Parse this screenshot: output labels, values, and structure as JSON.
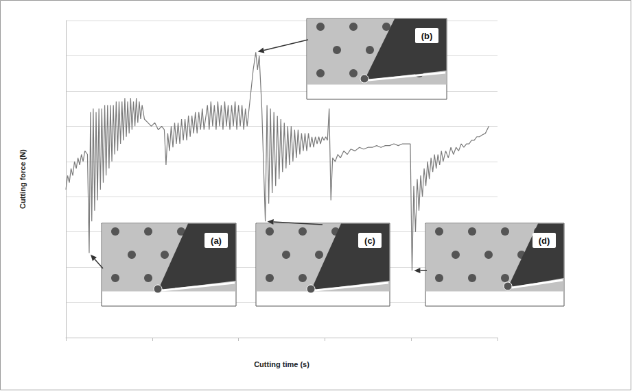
{
  "chart_data": {
    "type": "line",
    "x_label": "Cutting time (s)",
    "y_label": "Cutting force (N)",
    "color": "#7a7a7a",
    "grid": true,
    "tick_labels": false,
    "xlim": [
      0,
      5
    ],
    "xticks": [
      0,
      1,
      2,
      3,
      4,
      5
    ],
    "ylim": [
      0,
      9
    ],
    "yticks": [
      0,
      1,
      2,
      3,
      4,
      5,
      6,
      7,
      8,
      9
    ],
    "x": [
      0,
      0.02,
      0.04,
      0.06,
      0.08,
      0.1,
      0.12,
      0.14,
      0.16,
      0.18,
      0.2,
      0.22,
      0.25,
      0.27,
      0.285,
      0.3,
      0.317,
      0.333,
      0.35,
      0.366,
      0.383,
      0.4,
      0.416,
      0.433,
      0.45,
      0.466,
      0.483,
      0.5,
      0.516,
      0.533,
      0.55,
      0.566,
      0.583,
      0.6,
      0.616,
      0.633,
      0.65,
      0.666,
      0.683,
      0.7,
      0.716,
      0.733,
      0.75,
      0.766,
      0.783,
      0.8,
      0.816,
      0.833,
      0.85,
      0.866,
      0.883,
      0.91,
      0.95,
      0.99,
      1.03,
      1.07,
      1.11,
      1.14,
      1.16,
      1.18,
      1.2,
      1.22,
      1.24,
      1.26,
      1.28,
      1.3,
      1.32,
      1.34,
      1.36,
      1.38,
      1.4,
      1.42,
      1.44,
      1.46,
      1.48,
      1.5,
      1.52,
      1.54,
      1.56,
      1.58,
      1.6,
      1.64,
      1.66,
      1.68,
      1.7,
      1.72,
      1.74,
      1.76,
      1.78,
      1.8,
      1.82,
      1.84,
      1.86,
      1.88,
      1.9,
      1.92,
      1.94,
      1.96,
      1.98,
      2.0,
      2.02,
      2.04,
      2.06,
      2.08,
      2.1,
      2.14,
      2.17,
      2.2,
      2.22,
      2.24,
      2.27,
      2.31,
      2.33,
      2.35,
      2.37,
      2.39,
      2.41,
      2.43,
      2.45,
      2.47,
      2.49,
      2.51,
      2.53,
      2.55,
      2.57,
      2.59,
      2.61,
      2.63,
      2.65,
      2.67,
      2.69,
      2.71,
      2.73,
      2.75,
      2.77,
      2.79,
      2.81,
      2.83,
      2.85,
      2.87,
      2.89,
      2.91,
      2.93,
      2.95,
      2.97,
      2.99,
      3.01,
      3.03,
      3.05,
      3.07,
      3.09,
      3.12,
      3.15,
      3.18,
      3.22,
      3.26,
      3.3,
      3.35,
      3.4,
      3.45,
      3.5,
      3.55,
      3.6,
      3.65,
      3.7,
      3.75,
      3.8,
      3.85,
      3.9,
      3.95,
      3.99,
      4.01,
      4.03,
      4.05,
      4.07,
      4.09,
      4.11,
      4.13,
      4.15,
      4.17,
      4.19,
      4.21,
      4.23,
      4.25,
      4.27,
      4.29,
      4.31,
      4.33,
      4.35,
      4.37,
      4.4,
      4.43,
      4.46,
      4.49,
      4.52,
      4.55,
      4.58,
      4.61,
      4.64,
      4.67,
      4.7,
      4.73,
      4.76,
      4.79,
      4.82,
      4.86,
      4.9
    ],
    "values": [
      4.2,
      4.6,
      4.4,
      4.8,
      4.6,
      5.0,
      4.8,
      5.1,
      4.9,
      5.2,
      5.0,
      5.3,
      5.2,
      2.4,
      6.4,
      3.3,
      6.5,
      3.6,
      6.4,
      3.9,
      6.5,
      4.2,
      6.5,
      4.4,
      6.6,
      4.6,
      6.6,
      4.8,
      6.6,
      5.0,
      6.6,
      5.2,
      6.7,
      5.3,
      6.7,
      5.5,
      6.7,
      5.6,
      6.8,
      5.7,
      6.7,
      5.8,
      6.8,
      5.9,
      6.7,
      6.0,
      6.8,
      6.1,
      6.7,
      6.2,
      6.6,
      6.2,
      6.1,
      6.0,
      6.1,
      5.9,
      6.0,
      5.9,
      4.9,
      5.8,
      5.3,
      6.0,
      5.4,
      6.1,
      5.5,
      6.1,
      5.5,
      6.2,
      5.6,
      6.2,
      5.6,
      6.3,
      5.7,
      6.3,
      5.8,
      6.4,
      5.8,
      6.4,
      5.9,
      6.5,
      5.9,
      6.6,
      5.9,
      6.7,
      6.0,
      6.6,
      5.9,
      6.7,
      6.0,
      6.6,
      5.9,
      6.7,
      6.0,
      6.6,
      5.9,
      6.6,
      6.0,
      6.7,
      5.9,
      6.6,
      6.0,
      6.6,
      5.9,
      6.5,
      6.0,
      6.9,
      7.6,
      8.1,
      7.6,
      8.0,
      6.5,
      3.3,
      6.6,
      3.8,
      6.5,
      4.1,
      6.4,
      4.3,
      6.3,
      4.5,
      6.2,
      4.7,
      6.1,
      4.8,
      6.0,
      4.9,
      6.0,
      5.0,
      5.9,
      5.1,
      5.9,
      5.2,
      5.8,
      5.3,
      5.8,
      5.3,
      5.8,
      5.4,
      5.7,
      5.4,
      5.7,
      5.5,
      5.7,
      5.5,
      5.7,
      5.6,
      5.7,
      5.6,
      6.5,
      3.9,
      5.1,
      5.0,
      5.2,
      5.1,
      5.3,
      5.2,
      5.35,
      5.3,
      5.4,
      5.35,
      5.4,
      5.4,
      5.45,
      5.4,
      5.45,
      5.45,
      5.5,
      5.45,
      5.5,
      5.5,
      5.5,
      1.9,
      4.3,
      3.0,
      4.5,
      3.6,
      4.6,
      4.0,
      4.8,
      4.3,
      5.0,
      4.5,
      5.1,
      4.7,
      5.2,
      4.8,
      5.2,
      4.9,
      5.3,
      5.0,
      5.3,
      5.1,
      5.4,
      5.2,
      5.4,
      5.3,
      5.5,
      5.4,
      5.5,
      5.5,
      5.6,
      5.6,
      5.7,
      5.7,
      5.75,
      5.8,
      6.0
    ],
    "annotations": [
      {
        "label": "(a)",
        "x": 0.27,
        "y": 2.4
      },
      {
        "label": "(b)",
        "x": 2.2,
        "y": 8.1
      },
      {
        "label": "(c)",
        "x": 2.31,
        "y": 3.3
      },
      {
        "label": "(d)",
        "x": 4.01,
        "y": 1.9
      }
    ]
  }
}
